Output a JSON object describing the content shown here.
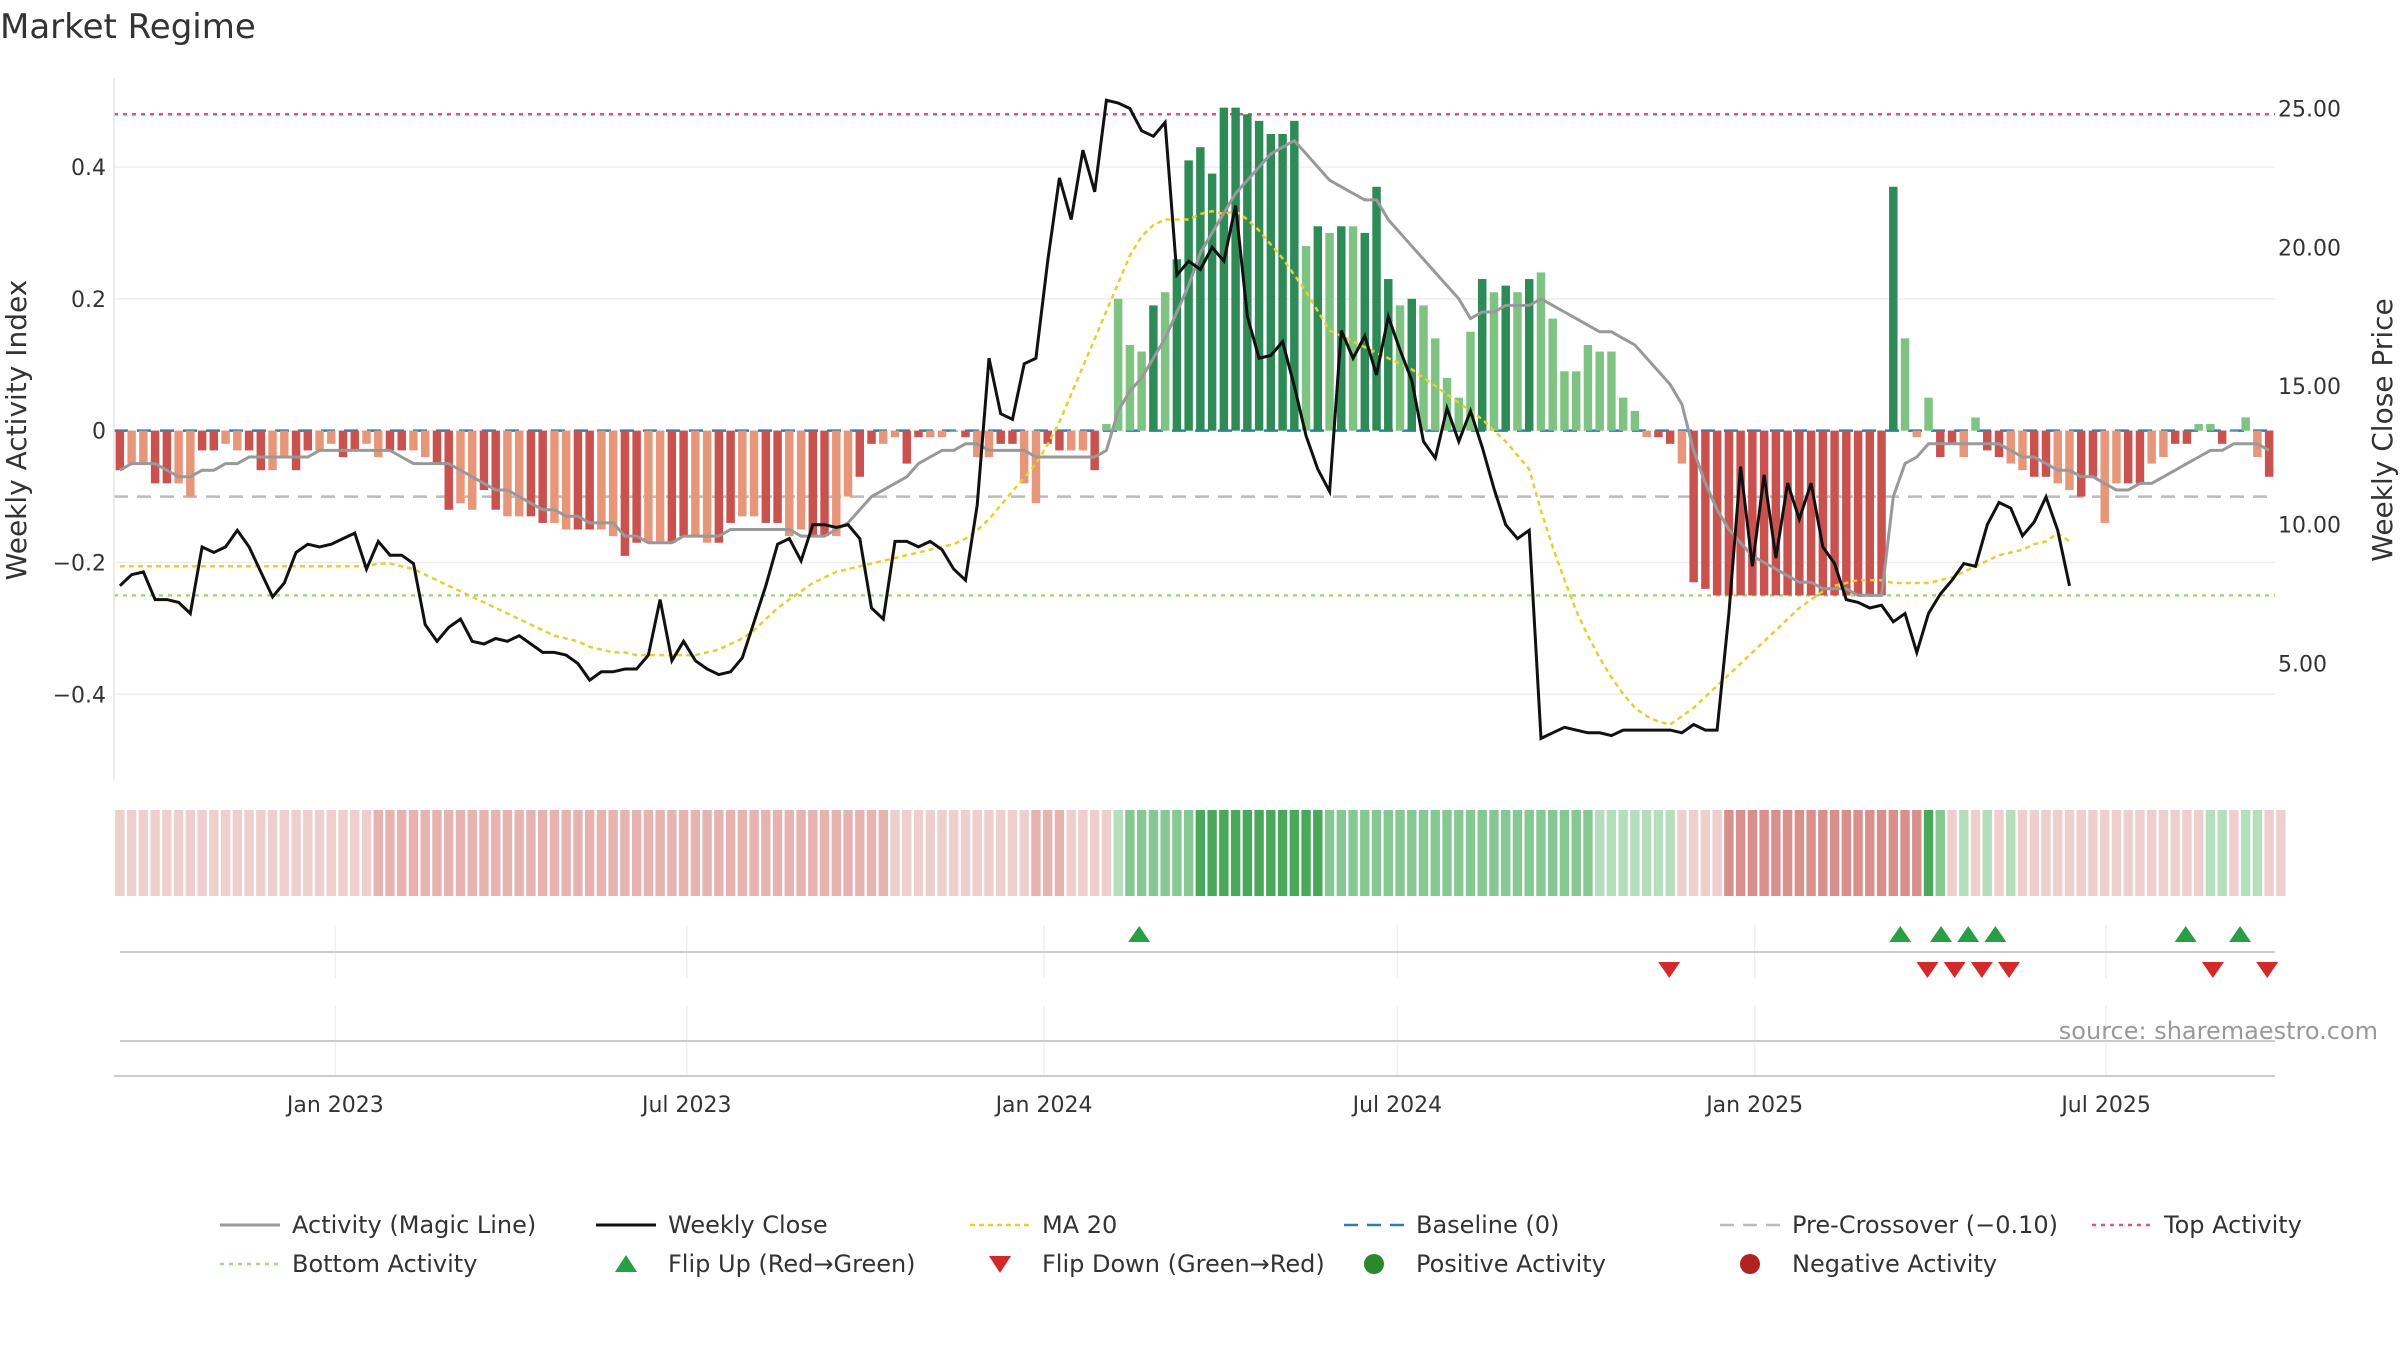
{
  "chart_data": {
    "type": "bar",
    "title": "Market Regime",
    "ylabel_left": "Weekly Activity Index",
    "ylabel_right": "Weekly Close Price",
    "source": "source: sharemaestro.com",
    "left_axis": {
      "ylim": [
        -0.53,
        0.535
      ],
      "ticks": [
        0.4,
        0.2,
        0,
        -0.2,
        -0.4
      ],
      "tick_labels": [
        "0.4",
        "0.2",
        "0",
        "−0.2",
        "−0.4"
      ]
    },
    "right_axis": {
      "ylim": [
        0.8,
        26.1
      ],
      "ticks": [
        25,
        20,
        15,
        10,
        5
      ],
      "tick_labels": [
        "25.00",
        "20.00",
        "15.00",
        "10.00",
        "5.00"
      ]
    },
    "x_axis": {
      "start": "2022-09-09",
      "end": "2025-09-26",
      "ticks": [
        "2023-01-01",
        "2023-07-01",
        "2024-01-01",
        "2024-07-01",
        "2025-01-01",
        "2025-07-01"
      ],
      "tick_labels": [
        "Jan 2023",
        "Jul 2023",
        "Jan 2024",
        "Jul 2024",
        "Jan 2025",
        "Jul 2025"
      ]
    },
    "reference_lines": {
      "baseline": 0,
      "pre_crossover": -0.1,
      "top_activity": 0.48,
      "bottom_activity": -0.25
    },
    "colors": {
      "green_strong": "#2e8b57",
      "green_light": "#7fc383",
      "red_strong": "#c9524f",
      "red_light": "#e8967a",
      "magic_line": "#999999",
      "weekly_close": "#111111",
      "ma20": "#e6cf2e",
      "baseline": "#2e7db3",
      "pre_crossover": "#bbbbbb",
      "top": "#dd5577",
      "bottom": "#a8d67a",
      "flip_up": "#27a045",
      "flip_down": "#d22a2a",
      "positive": "#2a8a2a",
      "negative": "#b22222"
    },
    "activity_values": [
      -0.06,
      -0.05,
      -0.05,
      -0.08,
      -0.08,
      -0.08,
      -0.1,
      -0.03,
      -0.03,
      -0.02,
      -0.03,
      -0.03,
      -0.06,
      -0.06,
      -0.04,
      -0.06,
      -0.03,
      -0.03,
      -0.02,
      -0.04,
      -0.03,
      -0.02,
      -0.04,
      -0.03,
      -0.03,
      -0.03,
      -0.04,
      -0.05,
      -0.12,
      -0.11,
      -0.12,
      -0.09,
      -0.12,
      -0.13,
      -0.13,
      -0.13,
      -0.14,
      -0.14,
      -0.15,
      -0.15,
      -0.15,
      -0.15,
      -0.16,
      -0.19,
      -0.17,
      -0.17,
      -0.17,
      -0.17,
      -0.16,
      -0.16,
      -0.17,
      -0.17,
      -0.14,
      -0.13,
      -0.13,
      -0.14,
      -0.14,
      -0.16,
      -0.15,
      -0.16,
      -0.16,
      -0.16,
      -0.1,
      -0.07,
      -0.02,
      -0.02,
      -0.01,
      -0.05,
      -0.01,
      -0.01,
      -0.01,
      0,
      -0.01,
      -0.04,
      -0.04,
      -0.02,
      -0.02,
      -0.08,
      -0.11,
      -0.02,
      -0.03,
      -0.03,
      -0.03,
      -0.06,
      0.01,
      0.2,
      0.13,
      0.12,
      0.19,
      0.21,
      0.26,
      0.41,
      0.43,
      0.39,
      0.49,
      0.49,
      0.48,
      0.47,
      0.45,
      0.45,
      0.47,
      0.28,
      0.31,
      0.3,
      0.31,
      0.31,
      0.3,
      0.37,
      0.23,
      0.19,
      0.2,
      0.19,
      0.14,
      0.08,
      0.05,
      0.15,
      0.23,
      0.21,
      0.22,
      0.21,
      0.23,
      0.24,
      0.17,
      0.09,
      0.09,
      0.13,
      0.12,
      0.12,
      0.05,
      0.03,
      -0.01,
      -0.01,
      -0.02,
      -0.05,
      -0.23,
      -0.24,
      -0.25,
      -0.25,
      -0.25,
      -0.25,
      -0.25,
      -0.25,
      -0.25,
      -0.25,
      -0.25,
      -0.25,
      -0.25,
      -0.25,
      -0.25,
      -0.25,
      -0.25,
      0.37,
      0.14,
      -0.01,
      0.05,
      -0.04,
      -0.02,
      -0.04,
      0.02,
      -0.03,
      -0.04,
      -0.05,
      -0.06,
      -0.07,
      -0.07,
      -0.08,
      -0.09,
      -0.1,
      -0.07,
      -0.14,
      -0.08,
      -0.08,
      -0.08,
      -0.05,
      -0.04,
      -0.02,
      -0.02,
      0.01,
      0.01,
      -0.02,
      0,
      0.02,
      -0.04,
      -0.07
    ],
    "magic_line": [
      -0.06,
      -0.05,
      -0.05,
      -0.05,
      -0.06,
      -0.07,
      -0.07,
      -0.06,
      -0.06,
      -0.05,
      -0.05,
      -0.04,
      -0.04,
      -0.04,
      -0.04,
      -0.04,
      -0.04,
      -0.03,
      -0.03,
      -0.03,
      -0.03,
      -0.03,
      -0.03,
      -0.03,
      -0.04,
      -0.05,
      -0.05,
      -0.05,
      -0.05,
      -0.06,
      -0.07,
      -0.08,
      -0.09,
      -0.09,
      -0.1,
      -0.11,
      -0.12,
      -0.12,
      -0.13,
      -0.13,
      -0.14,
      -0.14,
      -0.14,
      -0.16,
      -0.16,
      -0.17,
      -0.17,
      -0.17,
      -0.16,
      -0.16,
      -0.16,
      -0.16,
      -0.15,
      -0.15,
      -0.15,
      -0.15,
      -0.15,
      -0.15,
      -0.16,
      -0.16,
      -0.16,
      -0.15,
      -0.14,
      -0.12,
      -0.1,
      -0.09,
      -0.08,
      -0.07,
      -0.05,
      -0.04,
      -0.03,
      -0.03,
      -0.02,
      -0.02,
      -0.03,
      -0.03,
      -0.03,
      -0.03,
      -0.04,
      -0.04,
      -0.04,
      -0.04,
      -0.04,
      -0.04,
      -0.03,
      0.03,
      0.06,
      0.08,
      0.11,
      0.14,
      0.18,
      0.22,
      0.27,
      0.3,
      0.33,
      0.36,
      0.38,
      0.4,
      0.42,
      0.43,
      0.44,
      0.42,
      0.4,
      0.38,
      0.37,
      0.36,
      0.35,
      0.35,
      0.32,
      0.3,
      0.28,
      0.26,
      0.24,
      0.22,
      0.2,
      0.17,
      0.18,
      0.18,
      0.19,
      0.19,
      0.19,
      0.2,
      0.19,
      0.18,
      0.17,
      0.16,
      0.15,
      0.15,
      0.14,
      0.13,
      0.11,
      0.09,
      0.07,
      0.04,
      -0.03,
      -0.08,
      -0.12,
      -0.15,
      -0.17,
      -0.19,
      -0.2,
      -0.21,
      -0.22,
      -0.23,
      -0.23,
      -0.24,
      -0.24,
      -0.24,
      -0.25,
      -0.25,
      -0.25,
      -0.1,
      -0.05,
      -0.04,
      -0.02,
      -0.02,
      -0.02,
      -0.02,
      -0.02,
      -0.02,
      -0.02,
      -0.03,
      -0.04,
      -0.04,
      -0.05,
      -0.06,
      -0.06,
      -0.07,
      -0.07,
      -0.08,
      -0.09,
      -0.09,
      -0.08,
      -0.08,
      -0.07,
      -0.06,
      -0.05,
      -0.04,
      -0.03,
      -0.03,
      -0.02,
      -0.02,
      -0.02,
      -0.03
    ],
    "weekly_close": [
      7.8,
      8.2,
      8.3,
      7.3,
      7.3,
      7.2,
      6.8,
      9.2,
      9.0,
      9.2,
      9.8,
      9.2,
      8.3,
      7.4,
      7.9,
      9.0,
      9.3,
      9.2,
      9.3,
      9.5,
      9.7,
      8.4,
      9.4,
      8.9,
      8.9,
      8.6,
      6.4,
      5.8,
      6.3,
      6.6,
      5.8,
      5.7,
      5.9,
      5.8,
      6.0,
      5.7,
      5.4,
      5.4,
      5.3,
      5.0,
      4.4,
      4.7,
      4.7,
      4.8,
      4.8,
      5.3,
      7.3,
      5.1,
      5.8,
      5.1,
      4.8,
      4.6,
      4.7,
      5.2,
      6.5,
      7.8,
      9.3,
      9.5,
      8.7,
      10.0,
      10.0,
      9.9,
      10.0,
      9.5,
      7.0,
      6.6,
      9.4,
      9.4,
      9.2,
      9.4,
      9.1,
      8.4,
      8.0,
      10.7,
      16.0,
      14.0,
      13.8,
      15.8,
      16.0,
      19.5,
      22.5,
      21.0,
      23.5,
      22.0,
      25.3,
      25.2,
      25.0,
      24.2,
      24.0,
      24.5,
      19.0,
      19.5,
      19.2,
      20.0,
      19.5,
      21.5,
      17.5,
      16.0,
      16.1,
      16.6,
      15.0,
      13.2,
      12.0,
      11.2,
      17.0,
      16.0,
      16.8,
      15.4,
      17.5,
      16.3,
      15.2,
      13.0,
      12.4,
      14.2,
      13.0,
      14.1,
      12.8,
      11.3,
      10.0,
      9.5,
      9.8,
      2.3,
      2.5,
      2.7,
      2.6,
      2.5,
      2.5,
      2.4,
      2.6,
      2.6,
      2.6,
      2.6,
      2.6,
      2.5,
      2.8,
      2.6,
      2.6,
      6.8,
      12.1,
      8.5,
      11.8,
      8.8,
      11.5,
      10.2,
      11.5,
      9.2,
      8.6,
      7.3,
      7.2,
      7.0,
      7.1,
      6.5,
      6.8,
      5.4,
      6.8,
      7.5,
      8.0,
      8.6,
      8.5,
      10.0,
      10.8,
      10.6,
      9.6,
      10.1,
      11.0,
      9.8,
      7.8
    ],
    "ma20": [
      8.5,
      8.5,
      8.5,
      8.5,
      8.5,
      8.5,
      8.5,
      8.5,
      8.5,
      8.5,
      8.5,
      8.5,
      8.5,
      8.5,
      8.5,
      8.5,
      8.5,
      8.5,
      8.5,
      8.5,
      8.5,
      8.5,
      8.6,
      8.6,
      8.5,
      8.4,
      8.2,
      8.0,
      7.8,
      7.6,
      7.4,
      7.2,
      7.0,
      6.8,
      6.6,
      6.4,
      6.2,
      6.0,
      5.9,
      5.8,
      5.6,
      5.5,
      5.4,
      5.4,
      5.3,
      5.3,
      5.3,
      5.3,
      5.3,
      5.3,
      5.4,
      5.5,
      5.7,
      5.9,
      6.2,
      6.6,
      7.0,
      7.3,
      7.6,
      7.9,
      8.1,
      8.3,
      8.4,
      8.5,
      8.6,
      8.7,
      8.8,
      8.9,
      9.0,
      9.1,
      9.2,
      9.3,
      9.5,
      9.8,
      10.2,
      10.7,
      11.2,
      11.7,
      12.2,
      12.9,
      13.7,
      14.7,
      15.7,
      16.7,
      17.7,
      18.7,
      19.7,
      20.4,
      20.8,
      21.0,
      21.0,
      21.0,
      21.2,
      21.3,
      21.2,
      21.3,
      21.0,
      20.6,
      20.1,
      19.6,
      19.0,
      18.4,
      17.7,
      17.0,
      16.8,
      16.6,
      16.4,
      16.2,
      16.0,
      15.8,
      15.6,
      15.3,
      15.0,
      14.7,
      14.4,
      14.1,
      13.8,
      13.4,
      13.0,
      12.5,
      12.0,
      10.5,
      9.2,
      8.0,
      6.9,
      6.0,
      5.2,
      4.5,
      3.9,
      3.4,
      3.1,
      2.9,
      2.8,
      3.1,
      3.4,
      3.8,
      4.2,
      4.6,
      5.0,
      5.4,
      5.8,
      6.2,
      6.6,
      7.0,
      7.3,
      7.6,
      7.8,
      7.9,
      8.0,
      8.0,
      8.0,
      7.9,
      7.9,
      7.9,
      7.9,
      8.0,
      8.1,
      8.3,
      8.5,
      8.7,
      8.9,
      9.0,
      9.1,
      9.3,
      9.4,
      9.7,
      9.4
    ],
    "regime_strip": [
      -1,
      -1,
      -1,
      -1,
      -1,
      -1,
      -1,
      -1,
      -1,
      -1,
      -1,
      -1,
      -1,
      -1,
      -1,
      -1,
      -1,
      -1,
      -1,
      -1,
      -1,
      -1,
      -2,
      -2,
      -2,
      -2,
      -2,
      -2,
      -2,
      -2,
      -2,
      -2,
      -2,
      -2,
      -2,
      -2,
      -2,
      -2,
      -2,
      -2,
      -2,
      -2,
      -2,
      -2,
      -2,
      -2,
      -2,
      -2,
      -2,
      -2,
      -2,
      -2,
      -2,
      -2,
      -2,
      -2,
      -2,
      -2,
      -2,
      -2,
      -2,
      -2,
      -2,
      -2,
      -2,
      -2,
      -1,
      -1,
      -1,
      -1,
      -1,
      -1,
      -1,
      -1,
      -1,
      -1,
      -1,
      -1,
      -2,
      -2,
      -2,
      -1,
      -1,
      -1,
      -1,
      1,
      2,
      2,
      2,
      2,
      2,
      2,
      3,
      3,
      3,
      3,
      3,
      3,
      3,
      3,
      3,
      3,
      3,
      2,
      2,
      2,
      2,
      2,
      2,
      2,
      2,
      2,
      2,
      2,
      2,
      2,
      2,
      2,
      2,
      2,
      2,
      2,
      2,
      2,
      2,
      2,
      1,
      1,
      1,
      1,
      1,
      1,
      1,
      -1,
      -1,
      -1,
      -1,
      -3,
      -3,
      -3,
      -3,
      -3,
      -3,
      -3,
      -3,
      -3,
      -3,
      -3,
      -3,
      -3,
      -3,
      -3,
      -3,
      -3,
      3,
      2,
      -1,
      1,
      -1,
      1,
      -1,
      1,
      -1,
      -1,
      -1,
      -1,
      -1,
      -1,
      -1,
      -1,
      -1,
      -1,
      -1,
      -1,
      -1,
      -1,
      -1,
      -1,
      1,
      1,
      -1,
      1,
      1,
      -1,
      -1
    ],
    "flip_up_dates": [
      "2024-02-19",
      "2025-03-17",
      "2025-04-07",
      "2025-04-21",
      "2025-05-05",
      "2025-08-11",
      "2025-09-08"
    ],
    "flip_down_dates": [
      "2024-11-18",
      "2025-03-31",
      "2025-04-14",
      "2025-04-28",
      "2025-05-12",
      "2025-08-25",
      "2025-09-22"
    ],
    "legend": [
      "Activity (Magic Line)",
      "Weekly Close",
      "MA 20",
      "Baseline (0)",
      "Pre-Crossover (−0.10)",
      "Top Activity",
      "Bottom Activity",
      "Flip Up (Red→Green)",
      "Flip Down (Green→Red)",
      "Positive Activity",
      "Negative Activity"
    ]
  }
}
